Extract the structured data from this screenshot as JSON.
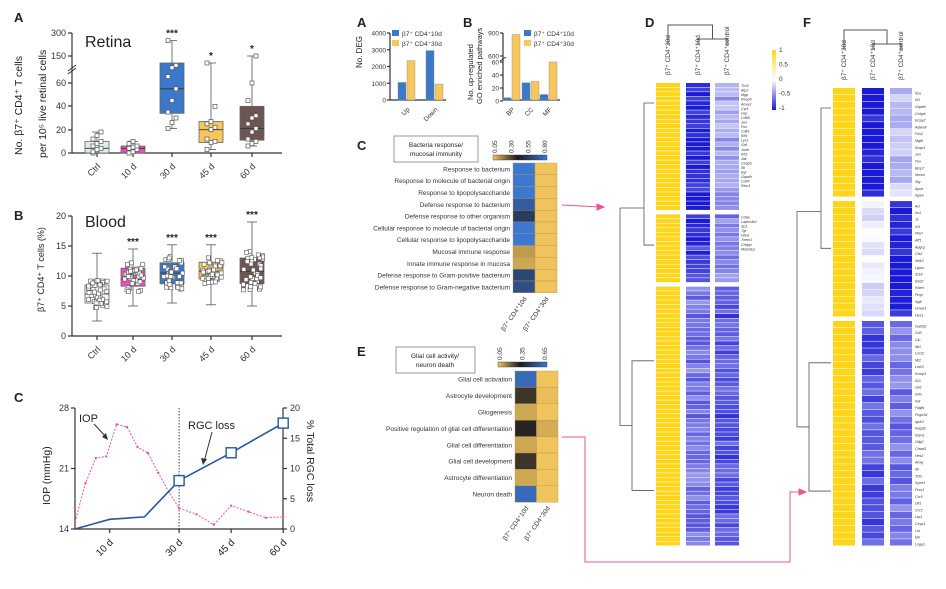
{
  "panel_labels": {
    "a": "A",
    "b": "B",
    "c": "C",
    "ma": "A",
    "mb": "B",
    "mc": "C",
    "me": "E",
    "d": "D",
    "f": "F"
  },
  "chart_data": [
    {
      "id": "retina",
      "type": "box",
      "title": "Retina",
      "ylabel": "No. β7⁺ CD4⁺ T cells per 10⁵ live retinal cells",
      "ylabel_line1": "No. β7⁺ CD4⁺ T cells",
      "ylabel_line2": "per 10⁵ live retinal cells",
      "yticks": [
        "0",
        "20",
        "40",
        "60",
        "150",
        "300"
      ],
      "broken_axis": true,
      "categories": [
        "Ctrl",
        "10 d",
        "30 d",
        "45 d",
        "60 d"
      ],
      "significance": [
        "",
        "",
        "***",
        "*",
        "*"
      ],
      "boxes": [
        {
          "min": 0,
          "q1": 0,
          "median": 4,
          "q3": 10,
          "max": 18,
          "color": "#dfecee"
        },
        {
          "min": 0,
          "q1": 0,
          "median": 4,
          "q3": 6,
          "max": 10,
          "color": "#e94fb4"
        },
        {
          "min": 21,
          "q1": 34,
          "median": 55,
          "q3": 120,
          "max": 250,
          "color": "#3b78c9"
        },
        {
          "min": 3,
          "q1": 9,
          "median": 20,
          "q3": 27,
          "max": 120,
          "color": "#f7c65c"
        },
        {
          "min": 6,
          "q1": 11,
          "median": 21,
          "q3": 40,
          "max": 150,
          "color": "#6b5653"
        }
      ],
      "points": [
        [
          0,
          2,
          4,
          6,
          8,
          10,
          12,
          15,
          18,
          1,
          3
        ],
        [
          0,
          1,
          3,
          4,
          5,
          6,
          8,
          10
        ],
        [
          21,
          26,
          30,
          35,
          45,
          55,
          62,
          100,
          110,
          250
        ],
        [
          3,
          9,
          10,
          12,
          20,
          22,
          25,
          27,
          40,
          120
        ],
        [
          6,
          8,
          10,
          12,
          18,
          21,
          25,
          30,
          32,
          45,
          60,
          150
        ]
      ]
    },
    {
      "id": "blood",
      "type": "box",
      "title": "Blood",
      "ylabel": "β7⁺ CD4⁺ T cells (%)",
      "yticks": [
        "0",
        "5",
        "10",
        "15",
        "20"
      ],
      "ylim": [
        0,
        20
      ],
      "categories": [
        "Ctrl",
        "10 d",
        "30 d",
        "45 d",
        "60 d"
      ],
      "significance": [
        "",
        "***",
        "***",
        "***",
        "***"
      ],
      "boxes": [
        {
          "min": 2.5,
          "q1": 5.5,
          "median": 7,
          "q3": 8.5,
          "max": 13.8,
          "color": "#f4f4f4"
        },
        {
          "min": 5,
          "q1": 8.3,
          "median": 9.5,
          "q3": 11.3,
          "max": 14.5,
          "color": "#e94fb4"
        },
        {
          "min": 5.5,
          "q1": 8.7,
          "median": 10.5,
          "q3": 12.2,
          "max": 15.2,
          "color": "#3b78c9"
        },
        {
          "min": 5.2,
          "q1": 9.5,
          "median": 10.8,
          "q3": 12.3,
          "max": 15.2,
          "color": "#f7c65c"
        },
        {
          "min": 5,
          "q1": 8.7,
          "median": 10.8,
          "q3": 13,
          "max": 19,
          "color": "#6b5653"
        }
      ]
    },
    {
      "id": "iop",
      "type": "line",
      "ylabel_left": "IOP (mmHg)",
      "ylabel_right": "% Total RGC loss",
      "yticks_left": [
        "14",
        "21",
        "28"
      ],
      "yticks_right": [
        "0",
        "5",
        "10",
        "15",
        "20"
      ],
      "xticks": [
        "10 d",
        "30 d",
        "45 d",
        "60 d"
      ],
      "xtick_days": [
        10,
        30,
        45,
        60
      ],
      "vline_day": 30,
      "annotations": {
        "iop": "IOP",
        "rgc": "RGC loss"
      },
      "series": [
        {
          "name": "IOP",
          "axis": "left",
          "color": "#e8559b",
          "x": [
            0,
            3,
            6,
            9,
            12,
            15,
            18,
            21,
            24,
            27,
            30,
            35,
            40,
            45,
            50,
            55,
            60
          ],
          "y": [
            14.8,
            19.3,
            22.2,
            22.4,
            26.1,
            25.8,
            23.5,
            22.8,
            20.5,
            18.3,
            16.4,
            15.7,
            14.5,
            16.7,
            16,
            15.3,
            15.4
          ]
        },
        {
          "name": "RGC loss",
          "axis": "right",
          "color": "#25589e",
          "x": [
            0,
            10,
            20,
            30,
            45,
            60
          ],
          "y": [
            0,
            1.6,
            2.0,
            8.0,
            12.6,
            17.5
          ],
          "markers_at": [
            30,
            45,
            60
          ]
        }
      ]
    },
    {
      "id": "deg",
      "type": "bar",
      "ylabel": "No. DEG",
      "yticks": [
        "0",
        "1000",
        "2000",
        "3000",
        "4000"
      ],
      "ylim": [
        0,
        4000
      ],
      "categories": [
        "Up",
        "Down"
      ],
      "legend": [
        "β7⁺ CD4⁺10d",
        "β7⁺ CD4⁺30d"
      ],
      "series": [
        {
          "name": "β7⁺ CD4⁺10d",
          "color": "#3b78c9",
          "values": [
            1050,
            2950
          ]
        },
        {
          "name": "β7⁺ CD4⁺30d",
          "color": "#f7c65c",
          "values": [
            2350,
            950
          ]
        }
      ]
    },
    {
      "id": "go",
      "type": "bar",
      "ylabel_line1": "No. up-regulated",
      "ylabel_line2": "GO enriched pathways",
      "yticks": [
        "0",
        "20",
        "40",
        "60",
        "600",
        "900"
      ],
      "broken_axis": true,
      "categories": [
        "BP",
        "CC",
        "MF"
      ],
      "legend": [
        "β7⁺ CD4⁺10d",
        "β7⁺ CD4⁺30d"
      ],
      "series": [
        {
          "name": "β7⁺ CD4⁺10d",
          "color": "#3b78c9",
          "values": [
            5,
            28,
            10
          ]
        },
        {
          "name": "β7⁺ CD4⁺30d",
          "color": "#f7c65c",
          "values": [
            880,
            30,
            60
          ]
        }
      ]
    },
    {
      "id": "bacteria",
      "type": "heatmap",
      "title_line1": "Bacteria response/",
      "title_line2": "mucosal immunity",
      "scale_ticks": [
        "0.05",
        "0.30",
        "0.55",
        "0.80"
      ],
      "columns": [
        "β7⁺ CD4⁺10d",
        "β7⁺ CD4⁺30d"
      ],
      "rows": [
        "Response to bacterium",
        "Response to molecule of bacterial origin",
        "Response to lipopolysaccharide",
        "Defense response to bacterium",
        "Defense response to other organism",
        "Cellular response to molecule of bacterial origin",
        "Cellular response to lipopolysaccharide",
        "Mucosal immune response",
        "Innate immune response in mucosa",
        "Defense response to Gram-positive bacterium",
        "Defense response to Gram-negative bacterium"
      ],
      "values": [
        [
          0.75,
          0.05
        ],
        [
          0.78,
          0.05
        ],
        [
          0.78,
          0.05
        ],
        [
          0.6,
          0.05
        ],
        [
          0.48,
          0.05
        ],
        [
          0.72,
          0.05
        ],
        [
          0.72,
          0.05
        ],
        [
          0.12,
          0.05
        ],
        [
          0.1,
          0.05
        ],
        [
          0.52,
          0.05
        ],
        [
          0.55,
          0.05
        ]
      ]
    },
    {
      "id": "glial",
      "type": "heatmap",
      "title_line1": "Glial cell activity/",
      "title_line2": "neuron death",
      "scale_ticks": [
        "0.05",
        "0.35",
        "0.65"
      ],
      "columns": [
        "β7⁺ CD4⁺10d",
        "β7⁺ CD4⁺30d"
      ],
      "rows": [
        "Glial cell activation",
        "Astrocyte development",
        "Gliogenesis",
        "Positive regulation of glial cell differentiation",
        "Glial cell differentiation",
        "Glial cell development",
        "Astrocyte differentiation",
        "Neuron death"
      ],
      "values": [
        [
          0.65,
          0.05
        ],
        [
          0.3,
          0.06
        ],
        [
          0.1,
          0.05
        ],
        [
          0.33,
          0.09
        ],
        [
          0.1,
          0.05
        ],
        [
          0.3,
          0.05
        ],
        [
          0.1,
          0.05
        ],
        [
          0.65,
          0.05
        ]
      ]
    },
    {
      "id": "heatmap-d",
      "type": "heatmap",
      "columns": [
        "β7⁺ CD4⁺30d",
        "β7⁺ CD4⁺10d",
        "β7⁺ CD4⁺control"
      ],
      "scale_ticks": [
        "1",
        "0.5",
        "0",
        "-0.5",
        "-1"
      ],
      "groups": [
        {
          "col_values": [
            1,
            -0.95,
            -0.4
          ],
          "genes": [
            "Tlr11",
            "Atp2",
            "Mgp",
            "Reep6",
            "Anxa3",
            "Cyr1",
            "Hsp",
            "Cd68",
            "Jun",
            "Fos",
            "Cdk6",
            "Klf4",
            "Lyz1",
            "Gdf",
            "Junb",
            "Rb1",
            "Jak",
            "Cebpb",
            "Ifit",
            "Egr",
            "Gapdh",
            "Cd40",
            "Rtcn1"
          ]
        },
        {
          "col_values": [
            1,
            -0.85,
            -0.55
          ],
          "genes": [
            "Cd9a",
            "Laptm4b1",
            "Sp1",
            "Tgf",
            "Hba1",
            "Tnem1",
            "Chdpp",
            "Mnd1l1p"
          ]
        },
        {
          "col_values": [
            1,
            -0.6,
            -0.75
          ],
          "genes": []
        }
      ]
    },
    {
      "id": "heatmap-f",
      "type": "heatmap",
      "columns": [
        "β7⁺ CD4⁺30d",
        "β7⁺ CD4⁺10d",
        "β7⁺ CD4⁺control"
      ],
      "groups": [
        {
          "col_values": [
            1,
            -1,
            -0.25
          ],
          "genes": [
            "Il1a",
            "Il1f",
            "Gapdh",
            "Cebpb",
            "Errpy2",
            "Adam8",
            "Fos2",
            "Mgfb",
            "Keap1",
            "Jun",
            "Fos",
            "Bmp7",
            "Nerva",
            "Stg",
            "Apoe",
            "Itgam"
          ]
        },
        {
          "col_values": [
            1,
            -0.1,
            -1
          ],
          "genes": [
            "Acl",
            "Irs1",
            "Tf",
            "Irf1",
            "Ptert",
            "Aff1",
            "Adgrg",
            "Cfs2",
            "Ntrk3",
            "Lgmn",
            "St18",
            "Ehd2",
            "Rbert",
            "Prop",
            "Ngfr",
            "Hmax1",
            "Hes1"
          ]
        },
        {
          "col_values": [
            1,
            -0.75,
            -0.6
          ],
          "genes": [
            "Dab2ip",
            "Cd3",
            "Clu",
            "Mt1",
            "Cxcl2",
            "Mt2",
            "Lrdc2",
            "Kcnip3",
            "Il10",
            "Gli3",
            "Nrtn",
            "Kdr",
            "Fdgfb",
            "Pcgn3d",
            "Igsfr1",
            "Rag3b",
            "Rbm1",
            "Olig2",
            "Cbwd1",
            "Hes2",
            "Amig",
            "Il6",
            "Tcf3",
            "Syne1",
            "Prss1",
            "Ccr5",
            "Dll1",
            "Ccr2",
            "Lrp1",
            "Cxsp1",
            "Lrn",
            "Elk",
            "Lnga1"
          ]
        }
      ]
    }
  ],
  "colors": {
    "pink_connector": "#e8559b",
    "gold": "#f7c65c",
    "blue": "#3b78c9",
    "heat_yellow": "#ffd51a",
    "heat_blue": "#1a1ad6"
  }
}
